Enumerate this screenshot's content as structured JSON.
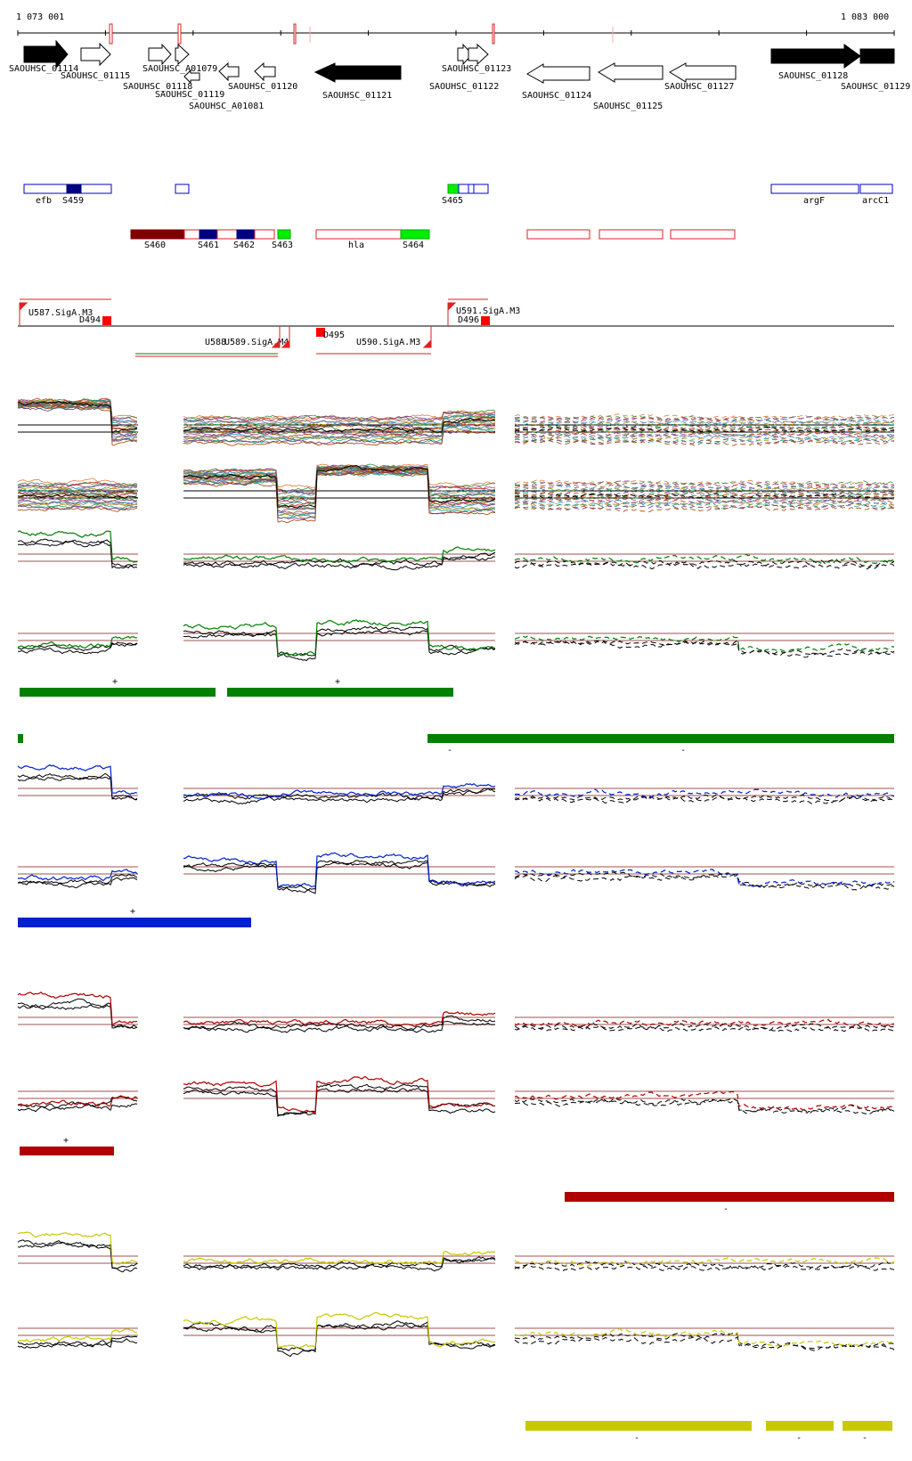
{
  "coords": {
    "start": "1 073 001",
    "end": "1 083 000"
  },
  "colors": {
    "green": "#008000",
    "blue": "#0022cc",
    "red": "#b00000",
    "yellow": "#c8c800",
    "black": "#000000",
    "ref": "#a05050",
    "outline_blue": "#0000cc",
    "outline_red": "#dd2222",
    "navy": "#000080",
    "bright_green": "#00ee00",
    "maroon": "#800000",
    "orange": "#ff8040"
  },
  "genes": [
    {
      "id": "SAOUHSC_01114",
      "strand": "+",
      "filled": true
    },
    {
      "id": "SAOUHSC_01115",
      "strand": "+",
      "filled": false
    },
    {
      "id": "SAOUHSC_01118",
      "strand": "+",
      "filled": false
    },
    {
      "id": "SAOUHSC_A01079",
      "strand": "+",
      "filled": false
    },
    {
      "id": "SAOUHSC_01119",
      "strand": "-",
      "filled": false
    },
    {
      "id": "SAOUHSC_A01081",
      "strand": "-",
      "filled": false
    },
    {
      "id": "SAOUHSC_01120",
      "strand": "-",
      "filled": false
    },
    {
      "id": "SAOUHSC_01121",
      "strand": "-",
      "filled": true
    },
    {
      "id": "SAOUHSC_01122",
      "strand": "+",
      "filled": false
    },
    {
      "id": "SAOUHSC_01123",
      "strand": "+",
      "filled": false
    },
    {
      "id": "SAOUHSC_01124",
      "strand": "-",
      "filled": false
    },
    {
      "id": "SAOUHSC_01125",
      "strand": "-",
      "filled": false
    },
    {
      "id": "SAOUHSC_01127",
      "strand": "-",
      "filled": false
    },
    {
      "id": "SAOUHSC_01128",
      "strand": "+",
      "filled": true
    },
    {
      "id": "SAOUHSC_01129",
      "strand": "+",
      "filled": true
    }
  ],
  "segments_plus": [
    {
      "label": "efb"
    },
    {
      "label": "S459"
    },
    {
      "label": "S465"
    },
    {
      "label": "argF"
    },
    {
      "label": "arcC1"
    }
  ],
  "segments_minus": [
    {
      "label": "S460"
    },
    {
      "label": "S461"
    },
    {
      "label": "S462"
    },
    {
      "label": "S463"
    },
    {
      "label": "hla"
    },
    {
      "label": "S464"
    }
  ],
  "promoters": [
    {
      "label": "U587.SigA.M3"
    },
    {
      "label": "D494"
    },
    {
      "label": "U588"
    },
    {
      "label": "U589.SigA.M4"
    },
    {
      "label": "D495"
    },
    {
      "label": "U590.SigA.M3"
    },
    {
      "label": "U591.SigA.M3"
    },
    {
      "label": "D496"
    }
  ],
  "condition_marks": {
    "plus": "+",
    "minus": "-"
  }
}
